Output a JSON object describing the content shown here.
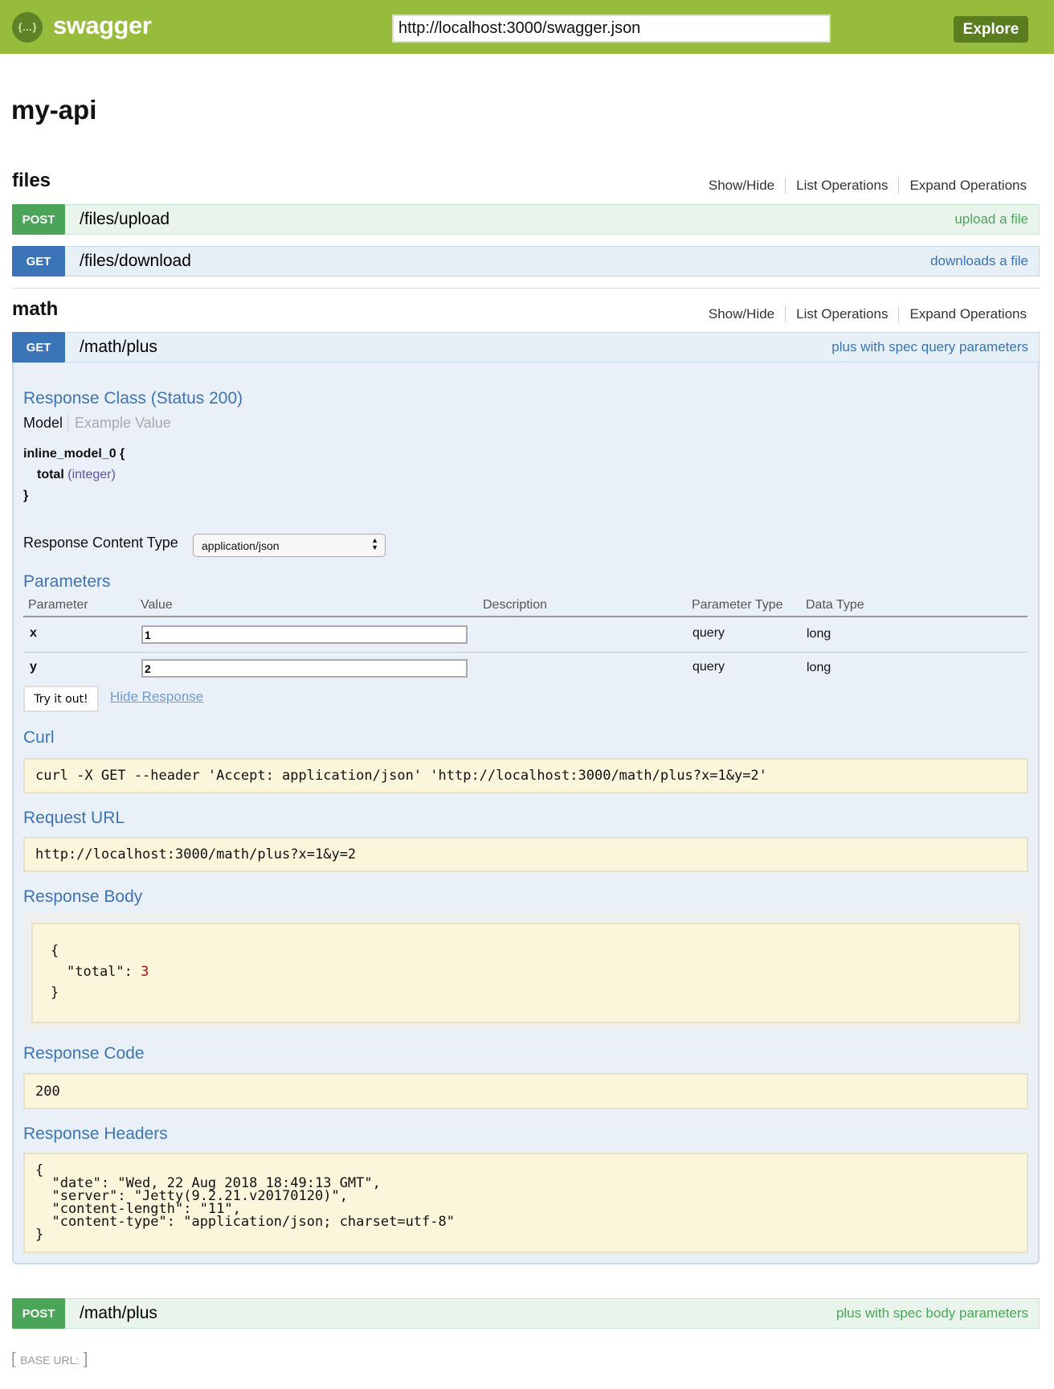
{
  "header": {
    "logo_text": "swagger",
    "logo_icon": "{…}",
    "url_value": "http://localhost:3000/swagger.json",
    "explore_label": "Explore"
  },
  "api_title": "my-api",
  "ops_links": {
    "show_hide": "Show/Hide",
    "list": "List Operations",
    "expand": "Expand Operations"
  },
  "sections": [
    {
      "title": "files",
      "operations": [
        {
          "method": "POST",
          "path": "/files/upload",
          "summary": "upload a file"
        },
        {
          "method": "GET",
          "path": "/files/download",
          "summary": "downloads a file"
        }
      ]
    },
    {
      "title": "math",
      "operations": [
        {
          "method": "GET",
          "path": "/math/plus",
          "summary": "plus with spec query parameters"
        },
        {
          "method": "POST",
          "path": "/math/plus",
          "summary": "plus with spec body parameters"
        }
      ]
    }
  ],
  "expanded": {
    "response_class": "Response Class (Status 200)",
    "tab_model": "Model",
    "tab_example": "Example Value",
    "model_name": "inline_model_0 {",
    "model_field": "total",
    "model_type": "(integer)",
    "model_close": "}",
    "content_type_label": "Response Content Type",
    "content_type_value": "application/json",
    "parameters_title": "Parameters",
    "columns": [
      "Parameter",
      "Value",
      "Description",
      "Parameter Type",
      "Data Type"
    ],
    "params": [
      {
        "name": "x",
        "value": "1",
        "description": "",
        "type": "query",
        "data_type": "long"
      },
      {
        "name": "y",
        "value": "2",
        "description": "",
        "type": "query",
        "data_type": "long"
      }
    ],
    "try_label": "Try it out!",
    "hide_label": "Hide Response",
    "curl_title": "Curl",
    "curl": "curl -X GET --header 'Accept: application/json' 'http://localhost:3000/math/plus?x=1&y=2'",
    "request_url_title": "Request URL",
    "request_url": "http://localhost:3000/math/plus?x=1&y=2",
    "response_body_title": "Response Body",
    "body_open": "{",
    "body_key": "\"total\": ",
    "body_value": "3",
    "body_close": "}",
    "response_code_title": "Response Code",
    "response_code": "200",
    "response_headers_title": "Response Headers",
    "headers": [
      "{",
      "  \"date\": \"Wed, 22 Aug 2018 18:49:13 GMT\",",
      "  \"server\": \"Jetty(9.2.21.v20170120)\",",
      "  \"content-length\": \"11\",",
      "  \"content-type\": \"application/json; charset=utf-8\"",
      "}"
    ]
  },
  "footer": {
    "base_url": "BASE URL:"
  },
  "colors": {
    "header": "#97bc3c",
    "post": "#4ba558",
    "get": "#3a74b6",
    "heading": "#3d74b4"
  }
}
